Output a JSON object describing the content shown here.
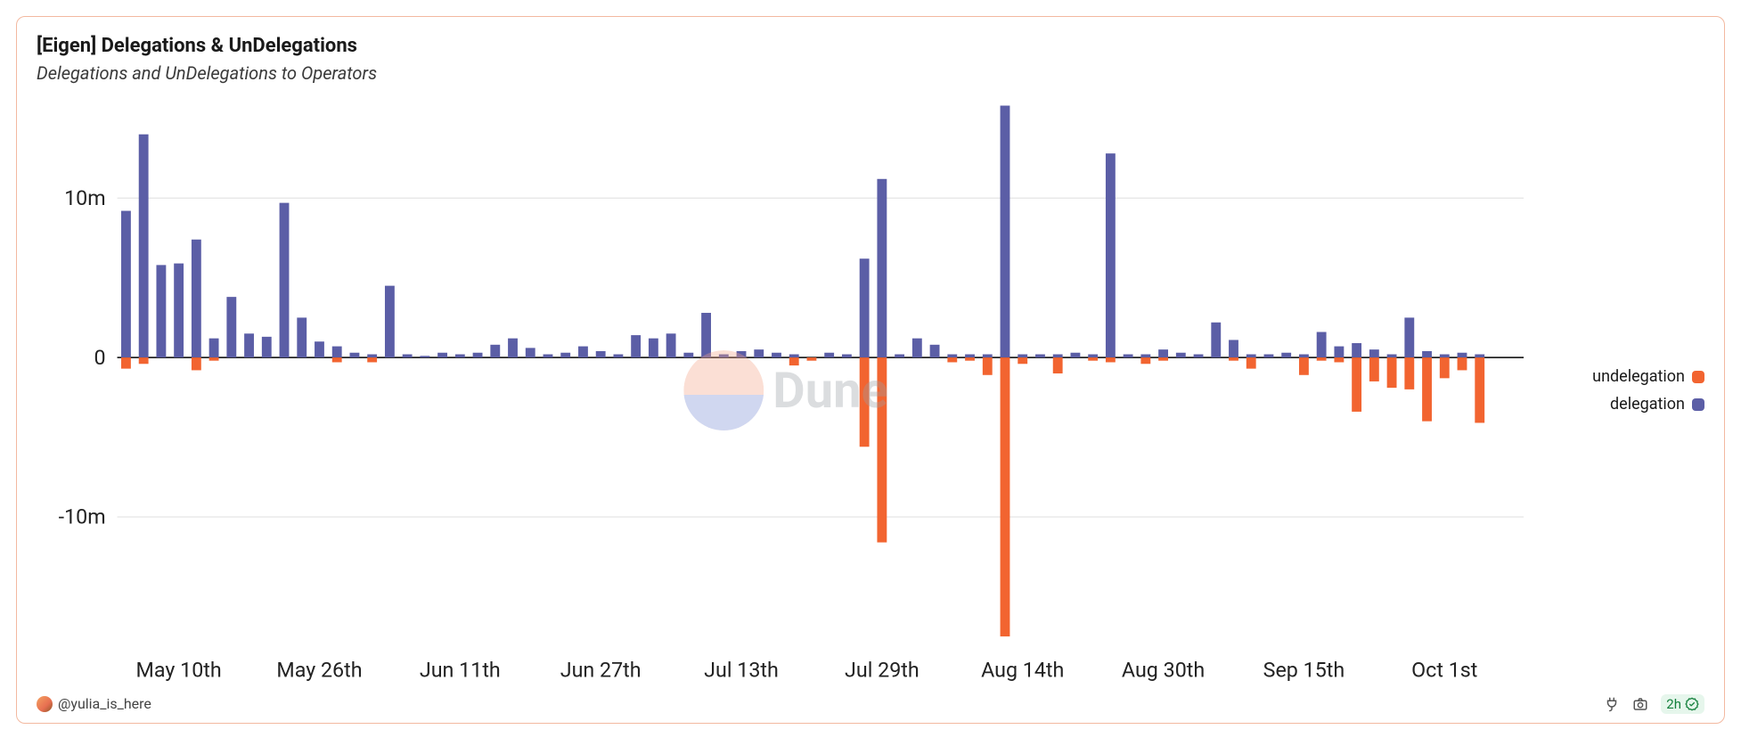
{
  "card": {
    "border_color": "#f3b9a0",
    "background_color": "#ffffff",
    "title": "[Eigen] Delegations & UnDelegations",
    "subtitle": "Delegations and UnDelegations to Operators",
    "title_fontsize": 22,
    "subtitle_fontsize": 20
  },
  "chart": {
    "type": "bar",
    "y_axis": {
      "min": -18000000,
      "max": 16000000,
      "tick_values": [
        -10000000,
        0,
        10000000
      ],
      "tick_labels": [
        "-10m",
        "0",
        "10m"
      ],
      "grid_color": "#e5e5e5",
      "zero_line_color": "#000000",
      "label_fontsize": 18
    },
    "x_axis": {
      "tick_positions": [
        3,
        11,
        19,
        27,
        35,
        43,
        51,
        59,
        67,
        75
      ],
      "tick_labels": [
        "May 10th",
        "May 26th",
        "Jun 11th",
        "Jun 27th",
        "Jul 13th",
        "Jul 29th",
        "Aug 14th",
        "Aug 30th",
        "Sep 15th",
        "Oct 1st"
      ],
      "label_fontsize": 18
    },
    "n_slots": 80,
    "bar_width_ratio": 0.55,
    "series": {
      "delegation": {
        "label": "delegation",
        "color": "#5b5ea6",
        "values": [
          9200000,
          14000000,
          5800000,
          5900000,
          7400000,
          1200000,
          3800000,
          1500000,
          1300000,
          9700000,
          2500000,
          1000000,
          700000,
          300000,
          200000,
          4500000,
          200000,
          100000,
          300000,
          200000,
          300000,
          800000,
          1200000,
          600000,
          200000,
          300000,
          700000,
          400000,
          200000,
          1400000,
          1200000,
          1500000,
          300000,
          2800000,
          200000,
          400000,
          500000,
          300000,
          200000,
          0,
          300000,
          200000,
          6200000,
          11200000,
          200000,
          1200000,
          800000,
          200000,
          200000,
          200000,
          15800000,
          200000,
          200000,
          200000,
          300000,
          200000,
          12800000,
          200000,
          200000,
          500000,
          300000,
          200000,
          2200000,
          1100000,
          200000,
          200000,
          300000,
          200000,
          1600000,
          700000,
          900000,
          500000,
          200000,
          2500000,
          400000,
          200000,
          300000,
          200000,
          0,
          0
        ]
      },
      "undelegation": {
        "label": "undelegation",
        "color": "#f26430",
        "values": [
          -700000,
          -400000,
          0,
          0,
          -800000,
          -200000,
          0,
          0,
          0,
          0,
          0,
          0,
          -300000,
          0,
          -300000,
          0,
          0,
          0,
          0,
          0,
          0,
          0,
          0,
          0,
          0,
          0,
          0,
          0,
          0,
          0,
          0,
          0,
          0,
          0,
          0,
          0,
          0,
          0,
          -500000,
          -200000,
          0,
          0,
          -5600000,
          -11600000,
          0,
          0,
          0,
          -300000,
          -200000,
          -1100000,
          -17500000,
          -400000,
          0,
          -1000000,
          0,
          -200000,
          -300000,
          0,
          -400000,
          -200000,
          0,
          0,
          0,
          -200000,
          -700000,
          0,
          0,
          -1100000,
          -200000,
          -300000,
          -3400000,
          -1500000,
          -1900000,
          -2000000,
          -4000000,
          -1300000,
          -800000,
          -4100000,
          0,
          0
        ]
      }
    },
    "legend": [
      {
        "key": "undelegation",
        "label": "undelegation",
        "color": "#f26430"
      },
      {
        "key": "delegation",
        "label": "delegation",
        "color": "#5b5ea6"
      }
    ]
  },
  "watermark": {
    "text": "Dune",
    "circle_top_color": "#f6a58a",
    "circle_bottom_color": "#7a8fd6",
    "text_color": "#9aa0a6"
  },
  "footer": {
    "author": "@yulia_is_here",
    "freshness_label": "2h",
    "freshness_badge_bg": "#e6f6ec",
    "freshness_color": "#15803d"
  }
}
